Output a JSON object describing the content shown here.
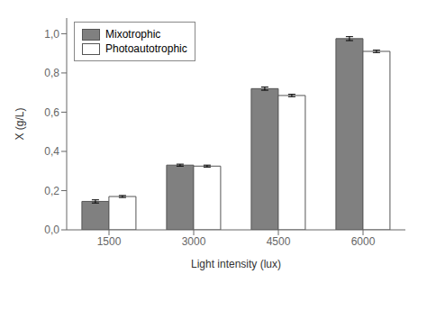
{
  "chart_data": {
    "type": "bar",
    "categories": [
      "1500",
      "3000",
      "4500",
      "6000"
    ],
    "series": [
      {
        "name": "Mixotrophic",
        "color": "#808080",
        "values": [
          0.145,
          0.33,
          0.72,
          0.975
        ],
        "errors": [
          0.008,
          0.005,
          0.008,
          0.01
        ]
      },
      {
        "name": "Photoautotrophic",
        "color": "#ffffff",
        "values": [
          0.17,
          0.325,
          0.685,
          0.91
        ],
        "errors": [
          0.005,
          0.005,
          0.006,
          0.006
        ]
      }
    ],
    "xlabel": "Light intensity (lux)",
    "ylabel": "X (g/L)",
    "ylim": [
      0,
      1.08
    ],
    "yticks": [
      {
        "value": 0.0,
        "label": "0,0"
      },
      {
        "value": 0.2,
        "label": "0,2"
      },
      {
        "value": 0.4,
        "label": "0,4"
      },
      {
        "value": 0.6,
        "label": "0,6"
      },
      {
        "value": 0.8,
        "label": "0,8"
      },
      {
        "value": 1.0,
        "label": "1,0"
      }
    ],
    "legend": "upper left",
    "grid": false
  }
}
